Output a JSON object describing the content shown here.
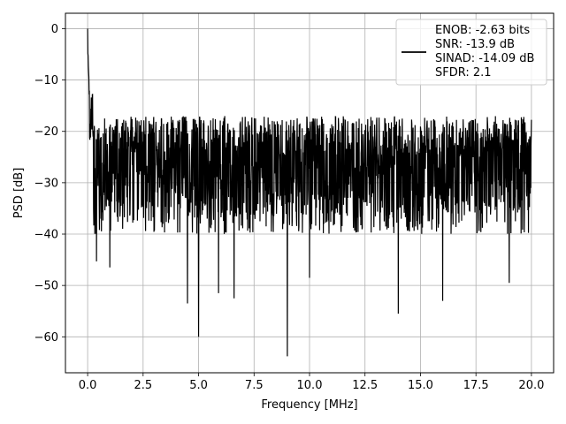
{
  "chart_data": {
    "type": "line",
    "title": "",
    "xlabel": "Frequency [MHz]",
    "ylabel": "PSD [dB]",
    "xlim": [
      -1.0,
      21.0
    ],
    "ylim": [
      -67,
      3
    ],
    "x_ticks": [
      0.0,
      2.5,
      5.0,
      7.5,
      10.0,
      12.5,
      15.0,
      17.5,
      20.0
    ],
    "x_tick_labels": [
      "0.0",
      "2.5",
      "5.0",
      "7.5",
      "10.0",
      "12.5",
      "15.0",
      "17.5",
      "20.0"
    ],
    "y_ticks": [
      0,
      -10,
      -20,
      -30,
      -40,
      -50,
      -60
    ],
    "y_tick_labels": [
      "0",
      "−10",
      "−20",
      "−30",
      "−40",
      "−50",
      "−60"
    ],
    "grid": true,
    "legend_position": "top-right",
    "legend_lines": [
      "ENOB: -2.63 bits",
      "SNR: -13.9 dB",
      "SINAD: -14.09 dB",
      "SFDR: 2.1"
    ],
    "series": [
      {
        "color": "#000000",
        "x_range": [
          0.0,
          20.0
        ],
        "dc_peak": 0,
        "noise_floor_mean": -27,
        "noise_floor_upper": -17,
        "noise_floor_lower": -36,
        "notable_dips": [
          {
            "x": 0.4,
            "y": -45.3
          },
          {
            "x": 1.0,
            "y": -46.5
          },
          {
            "x": 4.5,
            "y": -53.5
          },
          {
            "x": 5.0,
            "y": -60.0
          },
          {
            "x": 5.9,
            "y": -51.5
          },
          {
            "x": 6.6,
            "y": -52.5
          },
          {
            "x": 9.0,
            "y": -63.8
          },
          {
            "x": 10.0,
            "y": -48.5
          },
          {
            "x": 14.0,
            "y": -55.5
          },
          {
            "x": 16.0,
            "y": -53.0
          },
          {
            "x": 19.0,
            "y": -49.5
          }
        ]
      }
    ]
  }
}
